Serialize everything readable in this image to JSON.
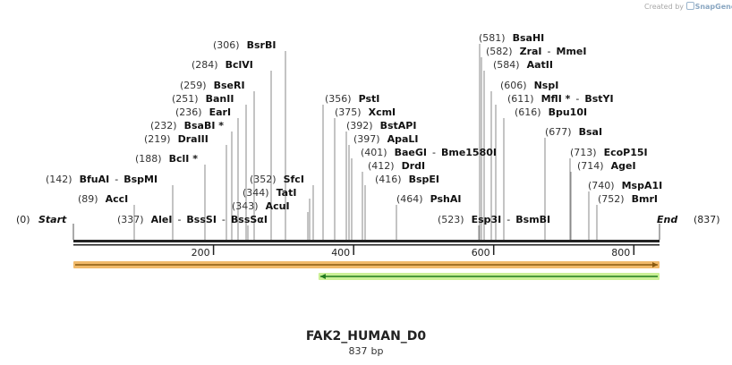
{
  "credit": {
    "prefix": "Created by",
    "brand": "SnapGene"
  },
  "title": "FAK2_HUMAN_D0",
  "length": {
    "value": "837",
    "unit": "bp"
  },
  "map": {
    "start_label": "Start",
    "start_pos": "(0)",
    "end_label": "End",
    "end_pos": "(837)",
    "ticks": [
      "200",
      "400",
      "600",
      "800"
    ]
  },
  "sites": [
    {
      "pos": "(306)",
      "name": "BsrBI"
    },
    {
      "pos": "(284)",
      "name": "BclVI"
    },
    {
      "pos": "(259)",
      "name": "BseRI"
    },
    {
      "pos": "(251)",
      "name": "BanII"
    },
    {
      "pos": "(236)",
      "name": "EarI"
    },
    {
      "pos": "(232)",
      "name": "BsaBI *"
    },
    {
      "pos": "(219)",
      "name": "DraIII"
    },
    {
      "pos": "(188)",
      "name": "BclI *"
    },
    {
      "pos": "(142)",
      "name": "BfuAI",
      "alt": "BspMI"
    },
    {
      "pos": "(89)",
      "name": "AccI"
    },
    {
      "pos": "(337)",
      "name": "AleI",
      "alt": "BssSI",
      "alt2": "BssSαI"
    },
    {
      "pos": "(352)",
      "name": "SfcI"
    },
    {
      "pos": "(344)",
      "name": "TatI"
    },
    {
      "pos": "(343)",
      "name": "AcuI"
    },
    {
      "pos": "(356)",
      "name": "PstI"
    },
    {
      "pos": "(375)",
      "name": "XcmI"
    },
    {
      "pos": "(392)",
      "name": "BstAPI"
    },
    {
      "pos": "(397)",
      "name": "ApaLI"
    },
    {
      "pos": "(401)",
      "name": "BaeGI",
      "alt": "Bme1580I"
    },
    {
      "pos": "(412)",
      "name": "DrdI"
    },
    {
      "pos": "(416)",
      "name": "BspEI"
    },
    {
      "pos": "(464)",
      "name": "PshAI"
    },
    {
      "pos": "(523)",
      "name": "Esp3I",
      "alt": "BsmBI"
    },
    {
      "pos": "(581)",
      "name": "BsaHI"
    },
    {
      "pos": "(582)",
      "name": "ZraI",
      "alt": "MmeI"
    },
    {
      "pos": "(584)",
      "name": "AatII"
    },
    {
      "pos": "(606)",
      "name": "NspI"
    },
    {
      "pos": "(611)",
      "name": "MflI *",
      "alt": "BstYI"
    },
    {
      "pos": "(616)",
      "name": "Bpu10I"
    },
    {
      "pos": "(677)",
      "name": "BsaI"
    },
    {
      "pos": "(713)",
      "name": "EcoP15I"
    },
    {
      "pos": "(714)",
      "name": "AgeI"
    },
    {
      "pos": "(740)",
      "name": "MspA1I"
    },
    {
      "pos": "(752)",
      "name": "BmrI"
    }
  ],
  "features": [
    {
      "name": "orange-feature",
      "start": 0,
      "end": 837,
      "direction": "forward",
      "color": "#f0b25a",
      "line": "#8a5b10"
    },
    {
      "name": "green-feature",
      "start": 350,
      "end": 837,
      "direction": "reverse",
      "color": "#c6ee8c",
      "line": "#1f7a1f"
    }
  ]
}
